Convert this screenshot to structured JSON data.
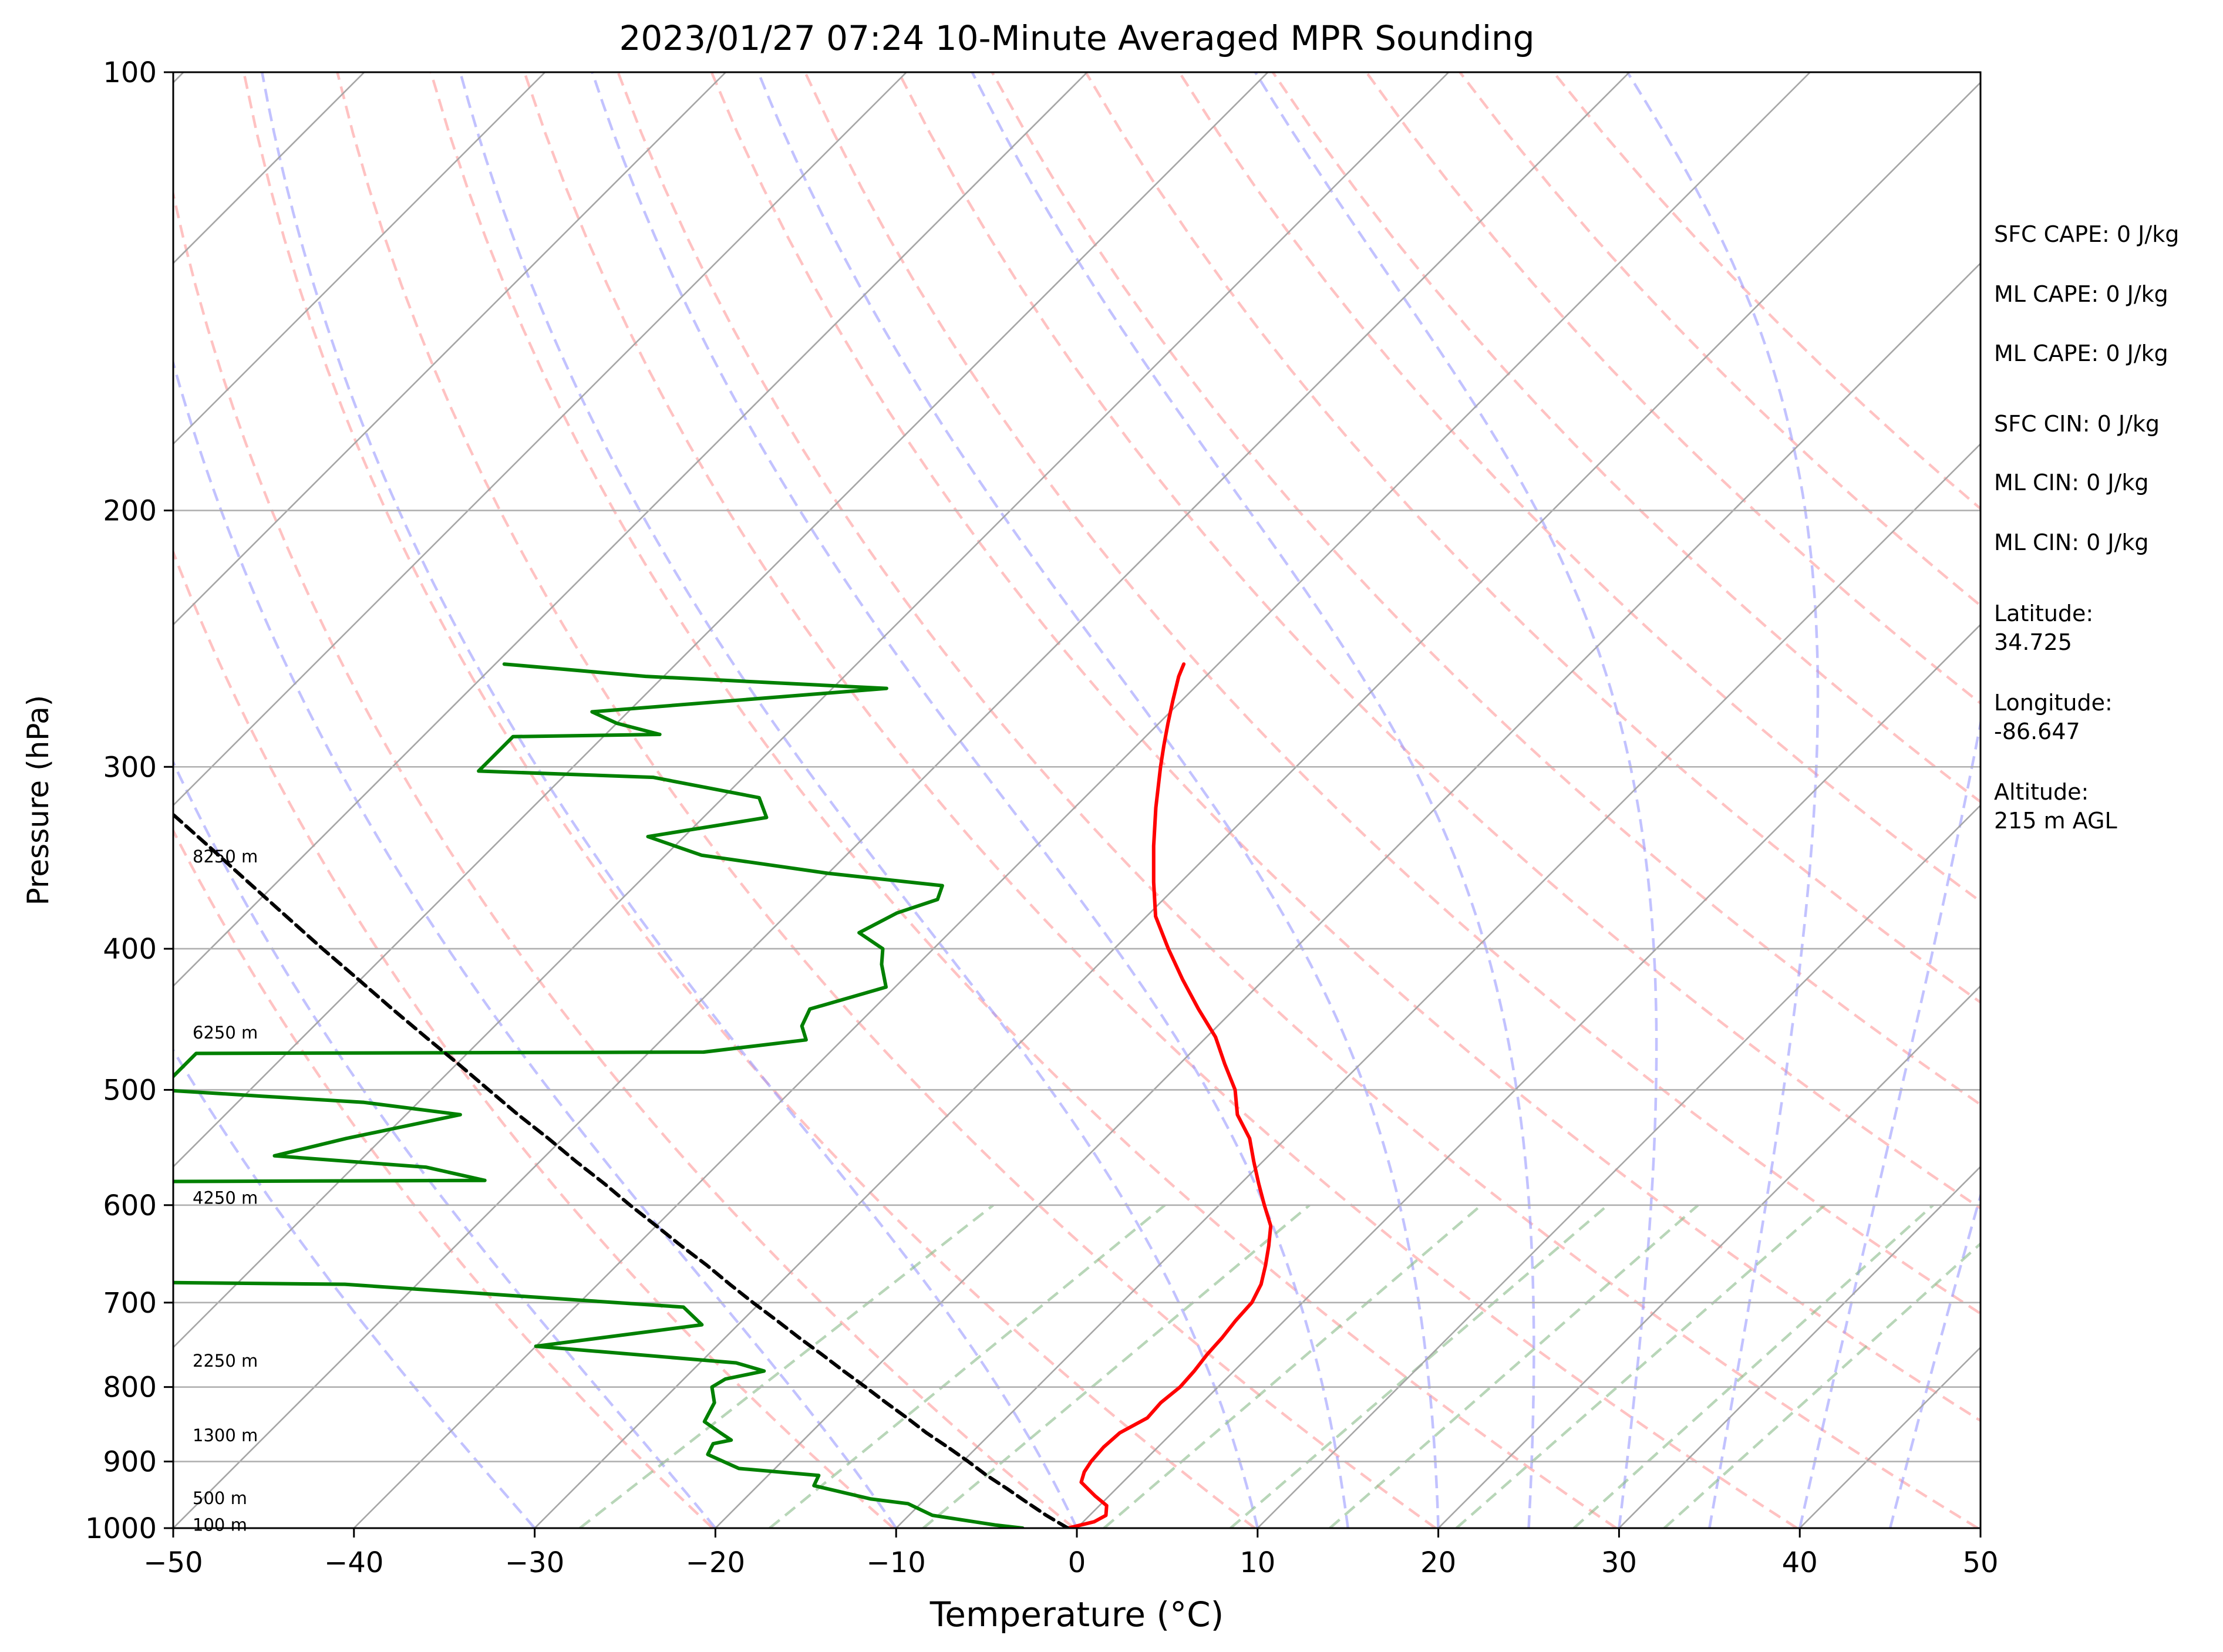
{
  "chart_data": {
    "type": "skew-t",
    "title": "2023/01/27 07:24 10-Minute Averaged MPR Sounding",
    "xlabel": "Temperature (°C)",
    "ylabel": "Pressure (hPa)",
    "xlim": [
      -50,
      50
    ],
    "ylim": [
      1000,
      100
    ],
    "y_scale": "log",
    "grid": true,
    "x_ticks": [
      -50,
      -40,
      -30,
      -20,
      -10,
      0,
      10,
      20,
      30,
      40,
      50
    ],
    "x_tick_labels": [
      "−50",
      "−40",
      "−30",
      "−20",
      "−10",
      "0",
      "10",
      "20",
      "30",
      "40",
      "50"
    ],
    "y_ticks": [
      100,
      200,
      300,
      400,
      500,
      600,
      700,
      800,
      900,
      1000
    ],
    "y_tick_labels": [
      "100",
      "200",
      "300",
      "400",
      "500",
      "600",
      "700",
      "800",
      "900",
      "1000"
    ],
    "background_lines": {
      "isotherm_temps": [
        -130,
        -120,
        -110,
        -100,
        -90,
        -80,
        -70,
        -60,
        -50,
        -40,
        -30,
        -20,
        -10,
        0,
        10,
        20,
        30,
        40,
        50
      ],
      "dry_adiabat_thetas_K": [
        253,
        263,
        273,
        283,
        293,
        303,
        313,
        323,
        333,
        343,
        353,
        363,
        373,
        383,
        393,
        403,
        413,
        423
      ],
      "moist_adiabat_start_temps": [
        -30,
        -20,
        -10,
        0,
        10,
        15,
        20,
        25,
        30,
        35,
        40,
        45,
        50
      ],
      "mixing_ratio_bottom_temps": [
        -27.5,
        -17,
        -8.5,
        1.5,
        8.5,
        14,
        21,
        27.5,
        32.5
      ],
      "mixing_ratio_top_temps": [
        -22.5,
        -13,
        -5,
        4.5,
        11.5,
        16.5,
        23.5,
        29.5,
        34.5
      ],
      "mixing_ratio_top_pressure": 600,
      "colors": {
        "isotherm": "#a6a6a6",
        "dry_adiabat": "#ff9999",
        "moist_adiabat": "#9999ff",
        "mixing_ratio": "#88bb88"
      }
    },
    "series": [
      {
        "name": "",
        "color": "#ff0000",
        "points": [
          [
            1000,
            -0.5
          ],
          [
            990,
            0.6
          ],
          [
            980,
            0.9
          ],
          [
            965,
            0.4
          ],
          [
            950,
            -0.8
          ],
          [
            930,
            -2.3
          ],
          [
            915,
            -2.7
          ],
          [
            900,
            -2.9
          ],
          [
            880,
            -3.0
          ],
          [
            860,
            -2.9
          ],
          [
            840,
            -2.2
          ],
          [
            820,
            -2.3
          ],
          [
            800,
            -2.1
          ],
          [
            780,
            -2.2
          ],
          [
            760,
            -2.4
          ],
          [
            740,
            -2.5
          ],
          [
            720,
            -2.7
          ],
          [
            700,
            -2.8
          ],
          [
            680,
            -3.3
          ],
          [
            660,
            -4.1
          ],
          [
            640,
            -5.0
          ],
          [
            620,
            -6.0
          ],
          [
            600,
            -7.5
          ],
          [
            580,
            -9.0
          ],
          [
            560,
            -10.5
          ],
          [
            540,
            -12.0
          ],
          [
            520,
            -14.0
          ],
          [
            500,
            -15.5
          ],
          [
            480,
            -17.5
          ],
          [
            460,
            -19.5
          ],
          [
            440,
            -22.0
          ],
          [
            420,
            -24.5
          ],
          [
            400,
            -27.0
          ],
          [
            380,
            -29.5
          ],
          [
            360,
            -31.5
          ],
          [
            340,
            -33.5
          ],
          [
            320,
            -35.5
          ],
          [
            300,
            -37.5
          ],
          [
            290,
            -38.5
          ],
          [
            280,
            -39.5
          ],
          [
            270,
            -40.5
          ],
          [
            260,
            -41.5
          ],
          [
            255,
            -41.9
          ]
        ]
      },
      {
        "name": "",
        "color": "#008000",
        "points": [
          [
            1000,
            -3.0
          ],
          [
            995,
            -4.7
          ],
          [
            980,
            -8.7
          ],
          [
            962,
            -10.7
          ],
          [
            955,
            -13.0
          ],
          [
            935,
            -16.9
          ],
          [
            920,
            -17.2
          ],
          [
            910,
            -22.0
          ],
          [
            890,
            -24.5
          ],
          [
            875,
            -24.8
          ],
          [
            870,
            -24.0
          ],
          [
            860,
            -25.0
          ],
          [
            845,
            -26.5
          ],
          [
            820,
            -27.0
          ],
          [
            800,
            -28.0
          ],
          [
            790,
            -27.7
          ],
          [
            780,
            -26.0
          ],
          [
            770,
            -28.0
          ],
          [
            750,
            -40.0
          ],
          [
            725,
            -32.0
          ],
          [
            705,
            -34.0
          ],
          [
            700,
            -38.0
          ],
          [
            680,
            -54.0
          ],
          [
            677,
            -70.0
          ],
          [
            578,
            -70.0
          ],
          [
            577,
            -52.0
          ],
          [
            565,
            -56.0
          ],
          [
            555,
            -65.0
          ],
          [
            540,
            -62.0
          ],
          [
            520,
            -57.0
          ],
          [
            510,
            -63.0
          ],
          [
            505,
            -69.0
          ],
          [
            500,
            -75.0
          ],
          [
            472,
            -75.0
          ],
          [
            471,
            -47.0
          ],
          [
            462,
            -42.0
          ],
          [
            452,
            -43.0
          ],
          [
            440,
            -43.5
          ],
          [
            425,
            -40.5
          ],
          [
            410,
            -42.0
          ],
          [
            400,
            -42.8
          ],
          [
            390,
            -45.0
          ],
          [
            378,
            -44.0
          ],
          [
            370,
            -42.5
          ],
          [
            362,
            -43.0
          ],
          [
            355,
            -50.0
          ],
          [
            345,
            -58.0
          ],
          [
            335,
            -62.0
          ],
          [
            325,
            -56.5
          ],
          [
            315,
            -58.0
          ],
          [
            305,
            -65.0
          ],
          [
            302,
            -75.0
          ],
          [
            286,
            -75.0
          ],
          [
            285,
            -67.0
          ],
          [
            280,
            -70.0
          ],
          [
            275,
            -72.0
          ],
          [
            265,
            -57.0
          ],
          [
            260,
            -71.0
          ],
          [
            255,
            -79.5
          ]
        ]
      },
      {
        "name": "",
        "color": "#000000",
        "dashed": true,
        "points": [
          [
            1000,
            -0.5
          ],
          [
            980,
            -2.4
          ],
          [
            960,
            -4.2
          ],
          [
            940,
            -6.0
          ],
          [
            920,
            -7.9
          ],
          [
            900,
            -9.7
          ],
          [
            880,
            -11.6
          ],
          [
            860,
            -13.6
          ],
          [
            840,
            -15.5
          ],
          [
            820,
            -17.5
          ],
          [
            800,
            -19.5
          ],
          [
            780,
            -21.6
          ],
          [
            760,
            -23.7
          ],
          [
            740,
            -25.9
          ],
          [
            720,
            -28.1
          ],
          [
            700,
            -30.4
          ],
          [
            680,
            -32.7
          ],
          [
            660,
            -35.0
          ],
          [
            640,
            -37.5
          ],
          [
            620,
            -40.0
          ],
          [
            600,
            -42.6
          ],
          [
            580,
            -45.2
          ],
          [
            560,
            -48.0
          ],
          [
            540,
            -50.8
          ],
          [
            520,
            -53.8
          ],
          [
            500,
            -56.8
          ],
          [
            480,
            -59.9
          ],
          [
            460,
            -63.2
          ],
          [
            440,
            -66.6
          ],
          [
            420,
            -70.1
          ],
          [
            400,
            -73.8
          ],
          [
            380,
            -77.6
          ],
          [
            360,
            -81.6
          ],
          [
            340,
            -85.8
          ],
          [
            320,
            -90.3
          ],
          [
            300,
            -95.0
          ]
        ]
      }
    ],
    "height_labels": [
      {
        "text": "8250 m",
        "pressure": 345
      },
      {
        "text": "6250 m",
        "pressure": 456
      },
      {
        "text": "4250 m",
        "pressure": 592
      },
      {
        "text": "2250 m",
        "pressure": 766
      },
      {
        "text": "1300 m",
        "pressure": 862
      },
      {
        "text": "500 m",
        "pressure": 952
      },
      {
        "text": "100 m",
        "pressure": 993
      }
    ],
    "annotations": [
      {
        "lines": [
          "SFC CAPE: 0 J/kg"
        ]
      },
      {
        "lines": [
          "ML CAPE: 0 J/kg"
        ]
      },
      {
        "lines": [
          "ML CAPE: 0 J/kg"
        ]
      },
      {
        "lines": [
          "SFC CIN: 0 J/kg"
        ]
      },
      {
        "lines": [
          "ML CIN: 0 J/kg"
        ]
      },
      {
        "lines": [
          "ML CIN: 0 J/kg"
        ]
      },
      {
        "lines": [
          "Latitude:",
          "34.725"
        ]
      },
      {
        "lines": [
          "Longitude:",
          "-86.647"
        ]
      },
      {
        "lines": [
          "Altitude:",
          "215 m AGL"
        ]
      }
    ]
  }
}
